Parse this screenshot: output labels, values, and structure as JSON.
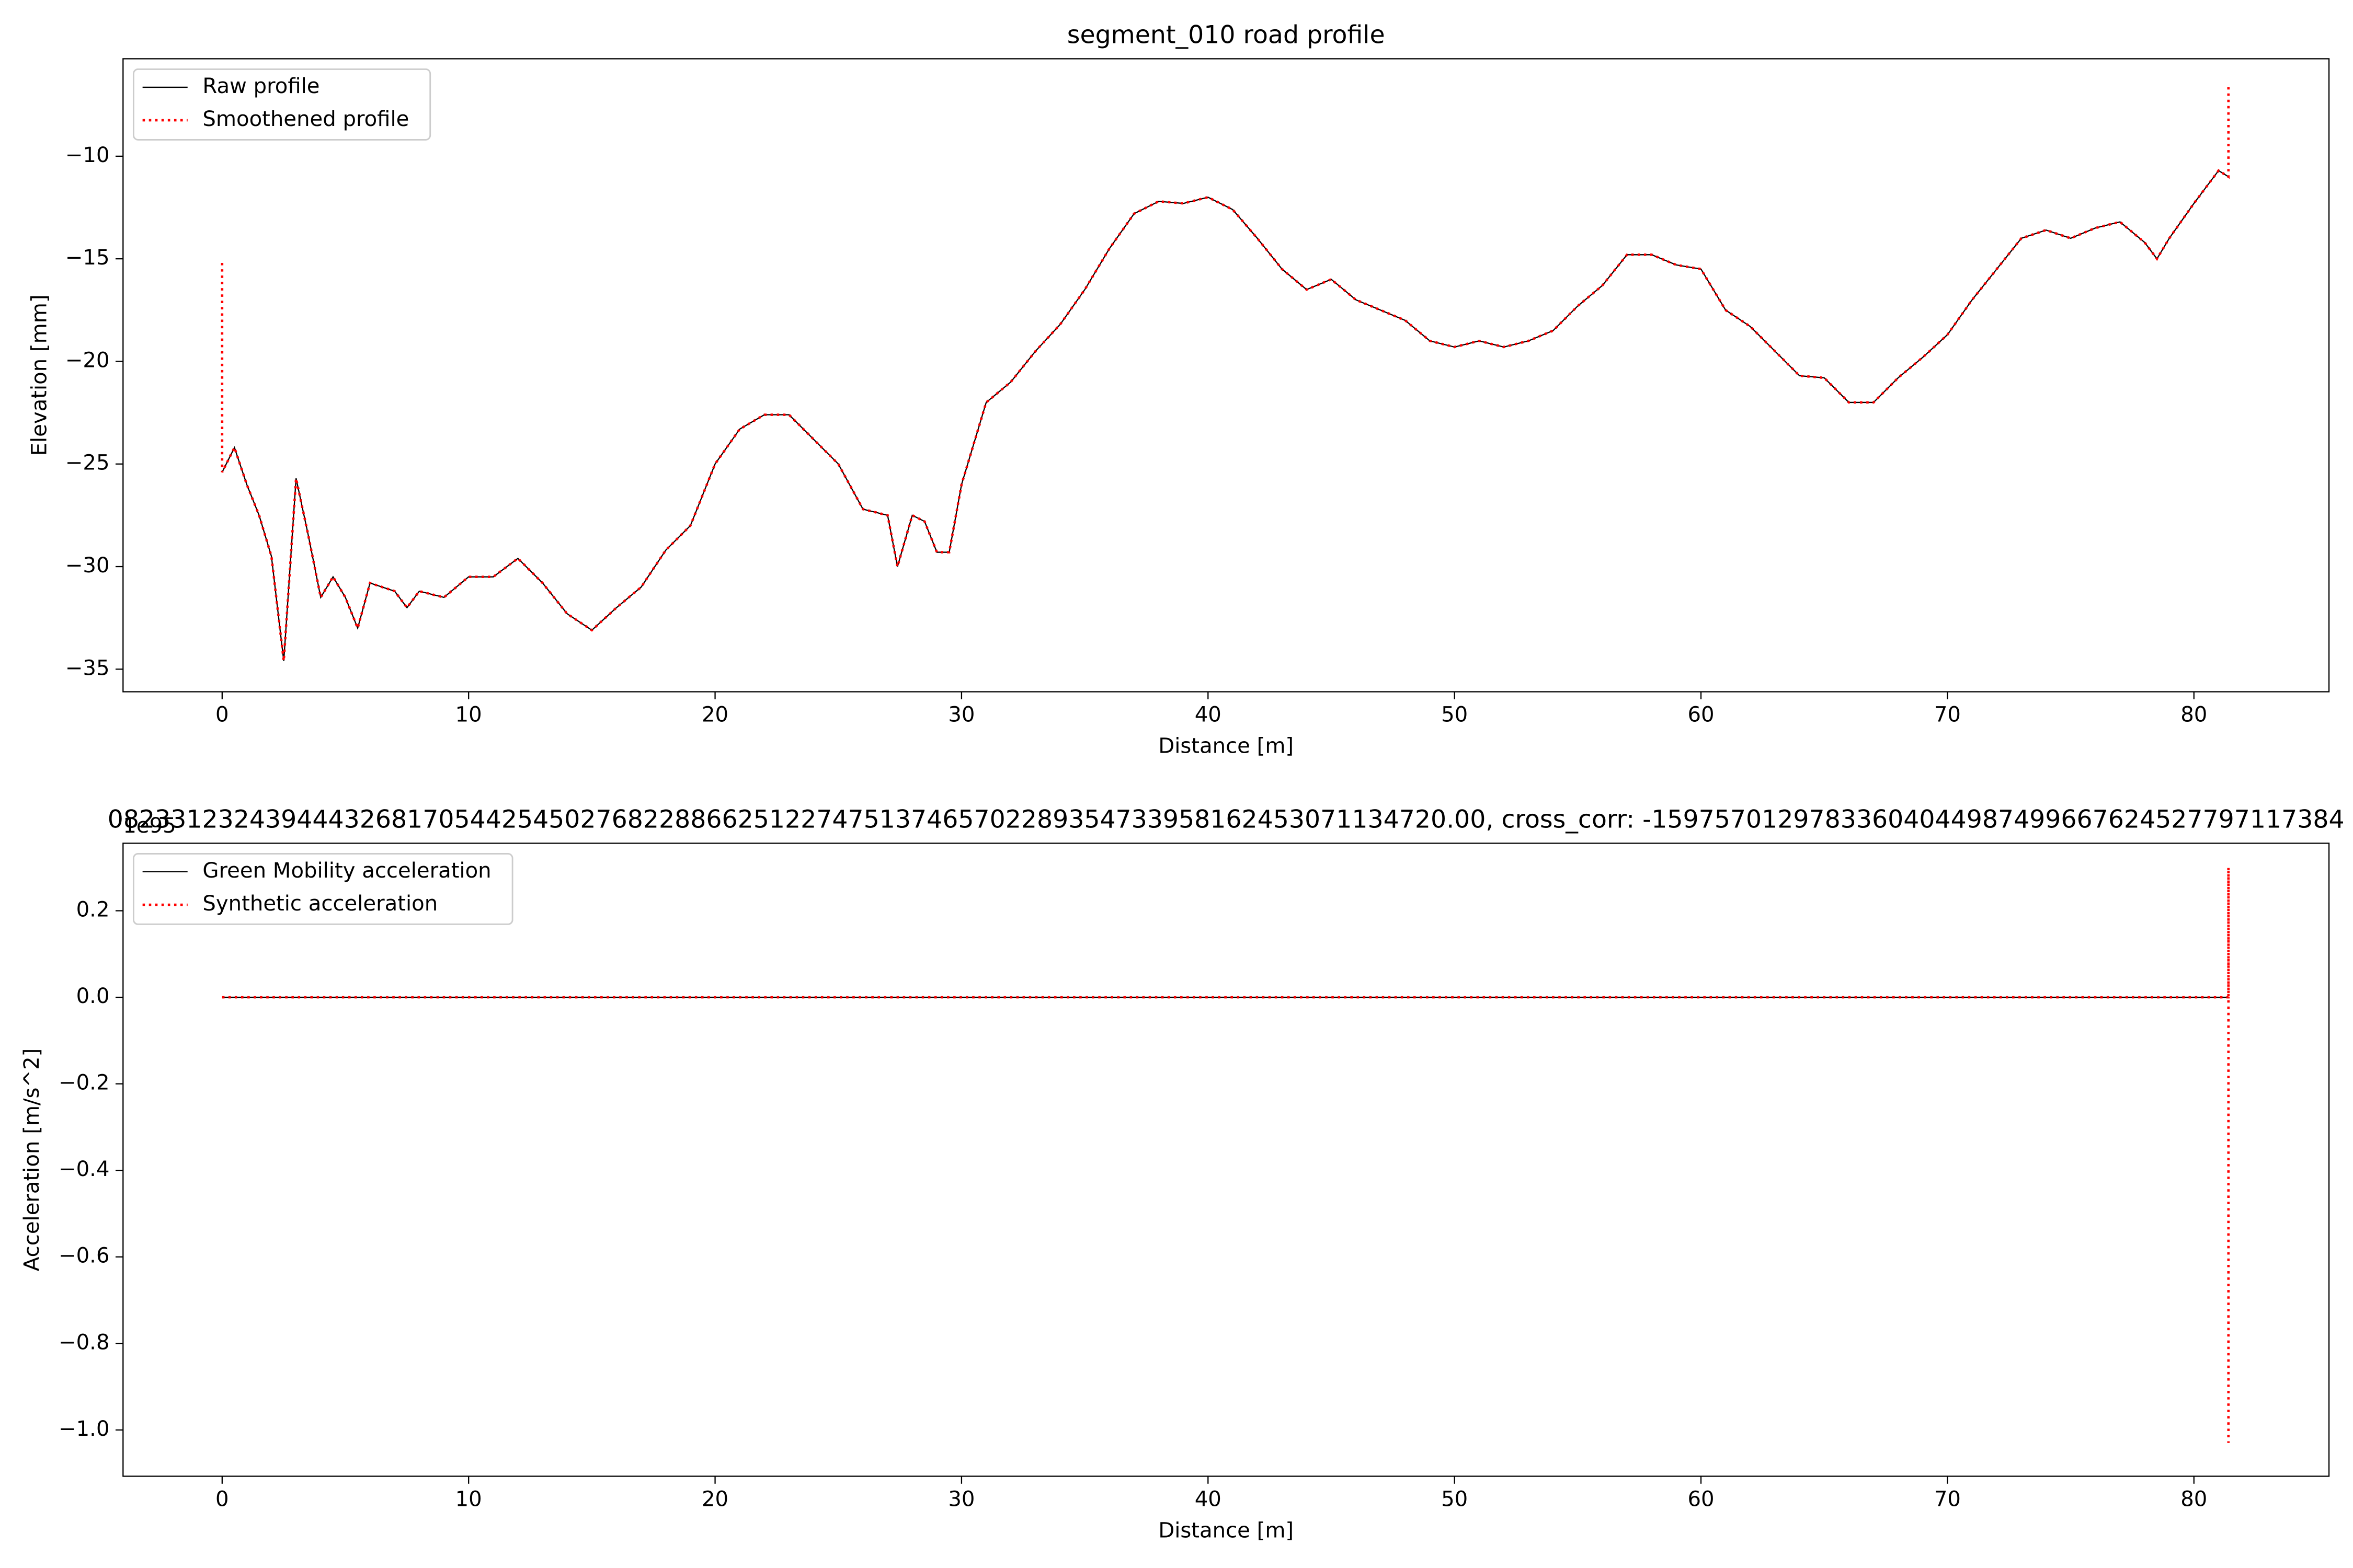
{
  "chart_data": [
    {
      "type": "line",
      "title": "segment_010 road profile",
      "xlabel": "Distance [m]",
      "ylabel": "Elevation [mm]",
      "x": [
        0,
        0,
        0.5,
        1,
        1.5,
        2,
        2.5,
        3,
        3.5,
        4,
        4.5,
        5,
        5.5,
        6,
        7,
        7.5,
        8,
        9,
        10,
        11,
        12,
        13,
        14,
        15,
        16,
        17,
        18,
        19,
        20,
        21,
        22,
        23,
        24,
        25,
        26,
        27,
        27.4,
        28,
        28.5,
        29,
        29.5,
        30,
        31,
        32,
        33,
        34,
        35,
        36,
        37,
        38,
        39,
        40,
        41,
        42,
        43,
        44,
        45,
        46,
        47,
        48,
        49,
        50,
        51,
        52,
        53,
        54,
        55,
        56,
        57,
        58,
        59,
        60,
        61,
        62,
        63,
        64,
        65,
        66,
        67,
        68,
        69,
        70,
        71,
        72,
        73,
        74,
        75,
        76,
        77,
        78,
        78.5,
        79,
        80,
        81,
        81.4,
        81.4
      ],
      "series": [
        {
          "name": "Raw profile",
          "color": "#000000",
          "linestyle": "solid",
          "values": [
            -25.4,
            -25.4,
            -24.2,
            -26,
            -27.5,
            -29.5,
            -34.6,
            -25.7,
            -28.5,
            -31.5,
            -30.5,
            -31.5,
            -33,
            -30.8,
            -31.2,
            -32,
            -31.2,
            -31.5,
            -30.5,
            -30.5,
            -29.6,
            -30.8,
            -32.3,
            -33.1,
            -32,
            -31,
            -29.2,
            -28,
            -25,
            -23.3,
            -22.6,
            -22.6,
            -23.8,
            -25,
            -27.2,
            -27.5,
            -30,
            -27.5,
            -27.8,
            -29.3,
            -29.3,
            -26,
            -22,
            -21,
            -19.5,
            -18.2,
            -16.5,
            -14.5,
            -12.8,
            -12.2,
            -12.3,
            -12,
            -12.6,
            -14,
            -15.5,
            -16.5,
            -16,
            -17,
            -17.5,
            -18,
            -19,
            -19.3,
            -19,
            -19.3,
            -19,
            -18.5,
            -17.3,
            -16.3,
            -14.8,
            -14.8,
            -15.3,
            -15.5,
            -17.5,
            -18.3,
            -19.5,
            -20.7,
            -20.8,
            -22,
            -22,
            -20.8,
            -19.8,
            -18.7,
            -17,
            -15.5,
            -14,
            -13.6,
            -14,
            -13.5,
            -13.2,
            -14.2,
            -15,
            -14,
            -12.3,
            -10.7,
            -11,
            -11
          ]
        },
        {
          "name": "Smoothened profile",
          "color": "#ff0000",
          "linestyle": "dotted",
          "values": [
            -15.2,
            -25.4,
            -24.2,
            -26,
            -27.5,
            -29.5,
            -34.6,
            -25.7,
            -28.5,
            -31.5,
            -30.5,
            -31.5,
            -33,
            -30.8,
            -31.2,
            -32,
            -31.2,
            -31.5,
            -30.5,
            -30.5,
            -29.6,
            -30.8,
            -32.3,
            -33.1,
            -32,
            -31,
            -29.2,
            -28,
            -25,
            -23.3,
            -22.6,
            -22.6,
            -23.8,
            -25,
            -27.2,
            -27.5,
            -30,
            -27.5,
            -27.8,
            -29.3,
            -29.3,
            -26,
            -22,
            -21,
            -19.5,
            -18.2,
            -16.5,
            -14.5,
            -12.8,
            -12.2,
            -12.3,
            -12,
            -12.6,
            -14,
            -15.5,
            -16.5,
            -16,
            -17,
            -17.5,
            -18,
            -19,
            -19.3,
            -19,
            -19.3,
            -19,
            -18.5,
            -17.3,
            -16.3,
            -14.8,
            -14.8,
            -15.3,
            -15.5,
            -17.5,
            -18.3,
            -19.5,
            -20.7,
            -20.8,
            -22,
            -22,
            -20.8,
            -19.8,
            -18.7,
            -17,
            -15.5,
            -14,
            -13.6,
            -14,
            -13.5,
            -13.2,
            -14.2,
            -15,
            -14,
            -12.3,
            -10.7,
            -11,
            -6.5
          ]
        }
      ],
      "xlim": [
        -4.02,
        85.48
      ],
      "xticks": [
        0,
        10,
        20,
        30,
        40,
        50,
        60,
        70,
        80
      ],
      "ylim": [
        -36.1,
        -5.25
      ],
      "yticks": [
        {
          "value": -35,
          "label": "−35"
        },
        {
          "value": -30,
          "label": "−30"
        },
        {
          "value": -25,
          "label": "−25"
        },
        {
          "value": -20,
          "label": "−20"
        },
        {
          "value": -15,
          "label": "−15"
        },
        {
          "value": -10,
          "label": "−10"
        }
      ],
      "grid": false,
      "legend": "upper left"
    },
    {
      "type": "line",
      "title": "0823312324394443268170544254502768228866251227475137465702289354733958162453071134720.00, cross_corr: -15975701297833604044987499667624527797117384",
      "xlabel": "Distance [m]",
      "ylabel": "Acceleration [m/s^2]",
      "y_offset_label": "1e95",
      "x": [
        0,
        81.4,
        81.4,
        81.4
      ],
      "series": [
        {
          "name": "Green Mobility acceleration",
          "color": "#000000",
          "linestyle": "solid",
          "values": [
            0,
            0,
            null,
            null
          ]
        },
        {
          "name": "Synthetic acceleration",
          "color": "#ff0000",
          "linestyle": "dotted",
          "values": [
            0,
            0,
            0.3,
            -1.03
          ]
        }
      ],
      "xlim": [
        -4.02,
        85.48
      ],
      "xticks": [
        0,
        10,
        20,
        30,
        40,
        50,
        60,
        70,
        80
      ],
      "ylim": [
        -1.107,
        0.356
      ],
      "yticks": [
        {
          "value": -1.0,
          "label": "−1.0"
        },
        {
          "value": -0.8,
          "label": "−0.8"
        },
        {
          "value": -0.6,
          "label": "−0.6"
        },
        {
          "value": -0.4,
          "label": "−0.4"
        },
        {
          "value": -0.2,
          "label": "−0.2"
        },
        {
          "value": 0.0,
          "label": "0.0"
        },
        {
          "value": 0.2,
          "label": "0.2"
        }
      ],
      "grid": false,
      "legend": "upper left"
    }
  ]
}
